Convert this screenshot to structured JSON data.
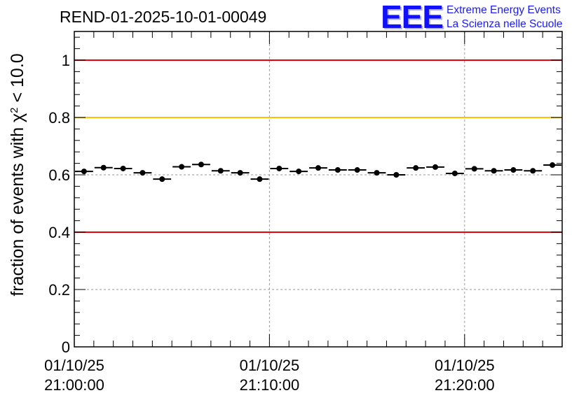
{
  "chart_data": {
    "type": "scatter",
    "title": "REND-01-2025-10-01-00049",
    "xlabel": "",
    "ylabel": "fraction of events with χ² < 10.0",
    "ylabel_main": "fraction of events with ",
    "ylabel_chi": "χ",
    "ylabel_sup": "2",
    "ylabel_tail": " < 10.0",
    "ylim": [
      0,
      1.1
    ],
    "xlim_minutes": [
      0,
      25
    ],
    "yticks": [
      0,
      0.2,
      0.4,
      0.6,
      0.8,
      1
    ],
    "ytick_labels": [
      "0",
      "0.2",
      "0.4",
      "0.6",
      "0.8",
      "1"
    ],
    "xticks": [
      {
        "minute": 0,
        "date": "01/10/25",
        "time": "21:00:00"
      },
      {
        "minute": 10,
        "date": "01/10/25",
        "time": "21:10:00"
      },
      {
        "minute": 20,
        "date": "01/10/25",
        "time": "21:20:00"
      }
    ],
    "bin_width_minutes": 1,
    "x": [
      0.5,
      1.5,
      2.5,
      3.5,
      4.5,
      5.5,
      6.5,
      7.5,
      8.5,
      9.5,
      10.5,
      11.5,
      12.5,
      13.5,
      14.5,
      15.5,
      16.5,
      17.5,
      18.5,
      19.5,
      20.5,
      21.5,
      22.5,
      23.5,
      24.5
    ],
    "values": [
      0.612,
      0.625,
      0.622,
      0.607,
      0.585,
      0.628,
      0.636,
      0.614,
      0.607,
      0.585,
      0.622,
      0.612,
      0.624,
      0.617,
      0.617,
      0.607,
      0.6,
      0.624,
      0.627,
      0.605,
      0.621,
      0.614,
      0.617,
      0.614,
      0.634
    ],
    "reference_lines": [
      {
        "y": 1.0,
        "color": "#e8000b"
      },
      {
        "y": 0.8,
        "color": "#ffc000"
      },
      {
        "y": 0.4,
        "color": "#e8000b"
      }
    ],
    "grid": true
  },
  "logo": {
    "big": "EEE",
    "line1": "Extreme Energy Events",
    "line2": "La Scienza nelle Scuole",
    "color": "#1010ff"
  }
}
